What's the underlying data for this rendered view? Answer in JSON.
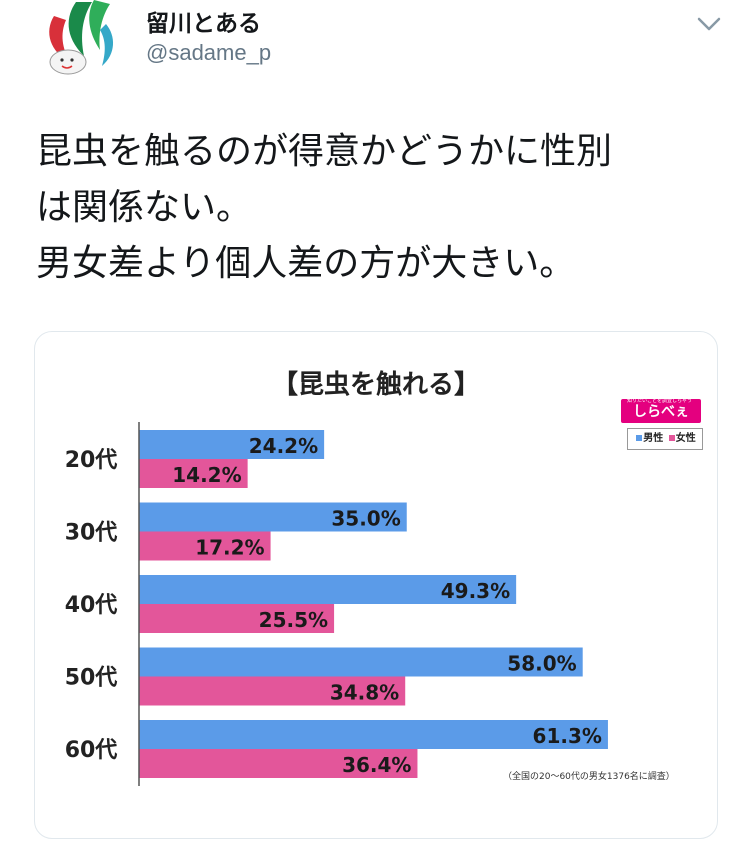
{
  "user": {
    "display_name": "留川とある",
    "handle": "@sadame_p"
  },
  "tweet": {
    "lines": [
      "昆虫を触るのが得意かどうかに性別",
      "は関係ない。",
      "男女差より個人差の方が大きい。"
    ]
  },
  "icons": {
    "menu": "chevron-down-icon",
    "avatar": "avatar-illustration"
  },
  "colors": {
    "male": "#5b9be8",
    "female": "#e3569a",
    "accent": "#e4007f"
  },
  "image": {
    "logo_tagline": "知りたいことを調査しちゃう",
    "logo_text": "しらべぇ",
    "legend": {
      "male": "男性",
      "female": "女性"
    },
    "footnote": "（全国の20〜60代の男女1376名に調査）"
  },
  "chart_data": {
    "type": "bar",
    "orientation": "horizontal",
    "title": "【昆虫を触れる】",
    "categories": [
      "20代",
      "30代",
      "40代",
      "50代",
      "60代"
    ],
    "series": [
      {
        "name": "男性",
        "values": [
          24.2,
          35.0,
          49.3,
          58.0,
          61.3
        ],
        "labels": [
          "24.2%",
          "35.0%",
          "49.3%",
          "58.0%",
          "61.3%"
        ]
      },
      {
        "name": "女性",
        "values": [
          14.2,
          17.2,
          25.5,
          34.8,
          36.4
        ],
        "labels": [
          "14.2%",
          "17.2%",
          "25.5%",
          "34.8%",
          "36.4%"
        ]
      }
    ],
    "xlim": [
      0,
      100
    ],
    "xlabel": "",
    "ylabel": "",
    "grid": false,
    "legend": "top-right"
  }
}
